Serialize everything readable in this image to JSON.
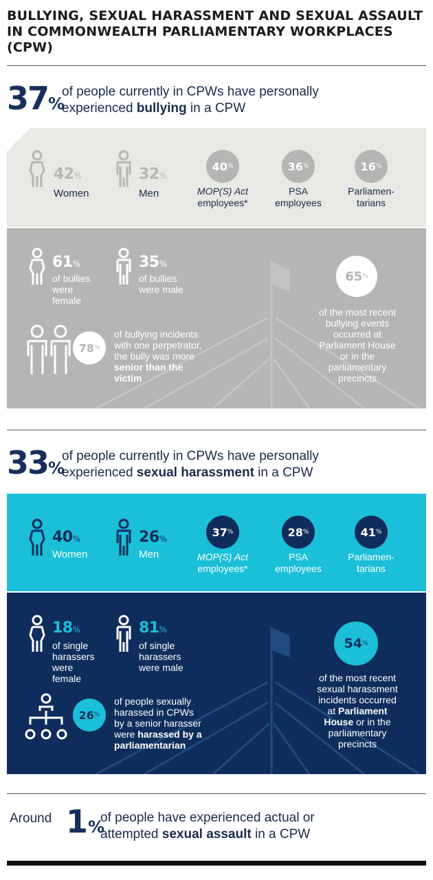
{
  "title": "BULLYING, SEXUAL HARASSMENT AND SEXUAL ASSAULT IN COMMONWEALTH PARLIAMENTARY WORKPLACES (CPW)",
  "bullying": {
    "headline_value": "37",
    "headline_pct": "%",
    "headline_line1": "of people currently in CPWs have personally",
    "headline_line2_pre": "experienced ",
    "headline_line2_bold": "bullying",
    "headline_line2_post": " in a CPW",
    "women_value": "42",
    "women_label": "Women",
    "men_value": "32",
    "men_label": "Men",
    "mop_value": "40",
    "mop_label_1": "MOP(S) Act",
    "mop_label_2": "employees*",
    "psa_value": "36",
    "psa_label_1": "PSA",
    "psa_label_2": "employees",
    "parl_value": "16",
    "parl_label_1": "Parliamen-",
    "parl_label_2": "tarians",
    "female_bullies_value": "61",
    "female_bullies_1": "of bullies",
    "female_bullies_2": "were",
    "female_bullies_3": "female",
    "male_bullies_value": "35",
    "male_bullies_1": "of bullies",
    "male_bullies_2": "were male",
    "senior_value": "78",
    "senior_1": "of bullying incidents",
    "senior_2": "with one perpetrator,",
    "senior_3": "the bully was more",
    "senior_4": "senior than the",
    "senior_5": "victim",
    "location_value": "65",
    "location_1": "of the most recent",
    "location_2": "bullying events",
    "location_3": "occurred at",
    "location_4": "Parliament House",
    "location_5": "or in the",
    "location_6": "parliamentary",
    "location_7": "precincts"
  },
  "harassment": {
    "headline_value": "33",
    "headline_pct": "%",
    "headline_line1": "of people currently in CPWs have personally",
    "headline_line2_pre": "experienced ",
    "headline_line2_bold": "sexual harassment",
    "headline_line2_post": " in a CPW",
    "women_value": "40",
    "women_label": "Women",
    "men_value": "26",
    "men_label": "Men",
    "mop_value": "37",
    "mop_label_1": "MOP(S) Act",
    "mop_label_2": "employees*",
    "psa_value": "28",
    "psa_label_1": "PSA",
    "psa_label_2": "employees",
    "parl_value": "41",
    "parl_label_1": "Parliamen-",
    "parl_label_2": "tarians",
    "female_value": "18",
    "female_1": "of single",
    "female_2": "harassers",
    "female_3": "were",
    "female_4": "female",
    "male_value": "81",
    "male_1": "of single",
    "male_2": "harassers",
    "male_3": "were male",
    "senior_value": "26",
    "senior_1": "of people sexually",
    "senior_2": "harassed in CPWs",
    "senior_3": "by a senior harasser",
    "senior_4_pre": "were ",
    "senior_4_bold": "harassed by a",
    "senior_5": "parliamentarian",
    "location_value": "54",
    "location_1": "of the most recent",
    "location_2": "sexual harassment",
    "location_3": "incidents occurred",
    "location_4_pre": "at ",
    "location_4_bold": "Parliament",
    "location_5_bold": "House",
    "location_5_post": " or in the",
    "location_6": "parliamentary",
    "location_7": "precincts"
  },
  "assault": {
    "pre": "Around",
    "value": "1",
    "pct": "%",
    "line1": "of people have experienced actual or",
    "line2_pre": "attempted ",
    "line2_bold": "sexual assault",
    "line2_post": " in a CPW"
  },
  "pct_sign": "%",
  "colors": {
    "navy": "#17305b",
    "grey_light": "#e8e8e4",
    "grey_mid": "#b5b5b3",
    "cyan": "#1bbfd8",
    "dark_blue": "#0f2d5c"
  }
}
